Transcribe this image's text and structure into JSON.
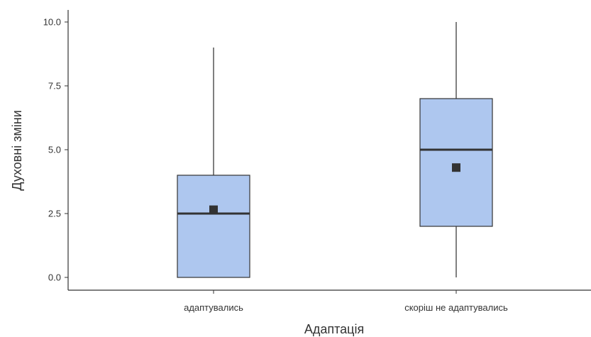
{
  "chart_data": {
    "type": "box",
    "xlabel": "Адаптація",
    "ylabel": "Духовні зміни",
    "ylim": [
      -0.5,
      10.5
    ],
    "yticks": [
      0,
      2.5,
      5,
      7.5,
      10
    ],
    "ytick_labels": [
      "0.0",
      "2.5",
      "5.0",
      "7.5",
      "10.0"
    ],
    "grid": false,
    "categories": [
      "адаптувались",
      "скоріш не адаптувались"
    ],
    "boxes": [
      {
        "category": "адаптувались",
        "min": 0,
        "q1": 0,
        "median": 2.5,
        "q3": 4,
        "max": 9,
        "mean": 2.65
      },
      {
        "category": "скоріш не адаптувались",
        "min": 0,
        "q1": 2,
        "median": 5,
        "q3": 7,
        "max": 10,
        "mean": 4.3
      }
    ],
    "colors": {
      "box_fill": "#aec7ef",
      "box_stroke": "#333333",
      "median": "#333333",
      "whisker": "#555555",
      "mean_marker": "#333333",
      "axis": "#333333"
    }
  }
}
